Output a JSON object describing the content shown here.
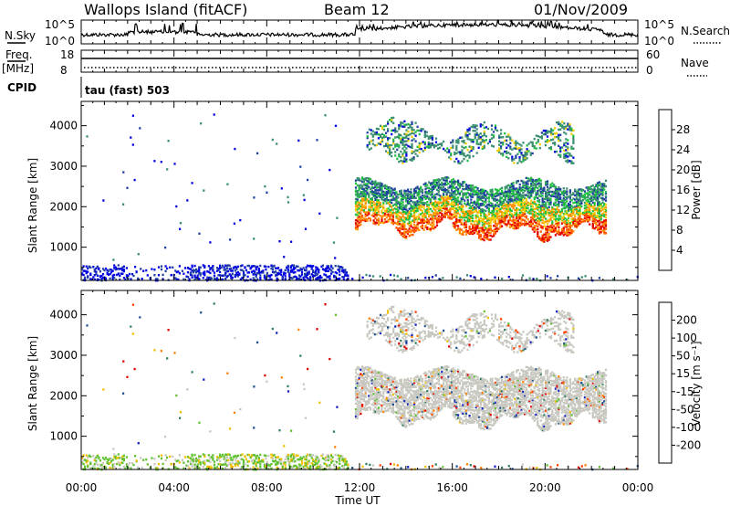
{
  "header": {
    "station": "Wallops Island (fitACF)",
    "beam": "Beam 12",
    "date": "01/Nov/2009"
  },
  "left_labels": {
    "nsky": "N.Sky",
    "freq_top": "Freq.",
    "freq_unit": "[MHz]",
    "cpid": "CPID",
    "cpid_value": "tau (fast) 503"
  },
  "right_labels": {
    "nsearch": "N.Search",
    "nave": "Nave"
  },
  "strip_ticks": {
    "noise_left": [
      "10^5",
      "10^0"
    ],
    "noise_right": [
      "10^5",
      "10^0"
    ],
    "freq_left": [
      "18",
      "8"
    ],
    "nave_right": [
      "60",
      "0"
    ]
  },
  "chart_data": [
    {
      "type": "heatmap",
      "ylabel": "Slant Range [km]",
      "xlabel": "",
      "ylim": [
        180,
        4600
      ],
      "yticks": [
        "1000",
        "2000",
        "3000",
        "4000"
      ],
      "colorbar_label": "Power [dB]",
      "colorbar_ticks": [
        "4",
        "8",
        "12",
        "16",
        "20",
        "24",
        "28"
      ],
      "colors": [
        "#0000e0",
        "#2040a0",
        "#3a8f70",
        "#20c040",
        "#f0d000",
        "#ff9000",
        "#ff5000",
        "#e00000"
      ]
    },
    {
      "type": "heatmap",
      "ylabel": "Slant Range [km]",
      "xlabel": "Time UT",
      "ylim": [
        180,
        4600
      ],
      "yticks": [
        "1000",
        "2000",
        "3000",
        "4000"
      ],
      "xticks": [
        "00:00",
        "04:00",
        "08:00",
        "12:00",
        "16:00",
        "20:00",
        "00:00"
      ],
      "colorbar_label": "Velocity [m s⁻¹]",
      "colorbar_ticks": [
        "200",
        "100",
        "50",
        "15",
        "-15",
        "-50",
        "-100",
        "-200"
      ],
      "colors": [
        "#1020c0",
        "#205090",
        "#308060",
        "#60c030",
        "#c8c8c0",
        "#f0c000",
        "#ff8000",
        "#ff4000",
        "#e00000"
      ]
    }
  ]
}
